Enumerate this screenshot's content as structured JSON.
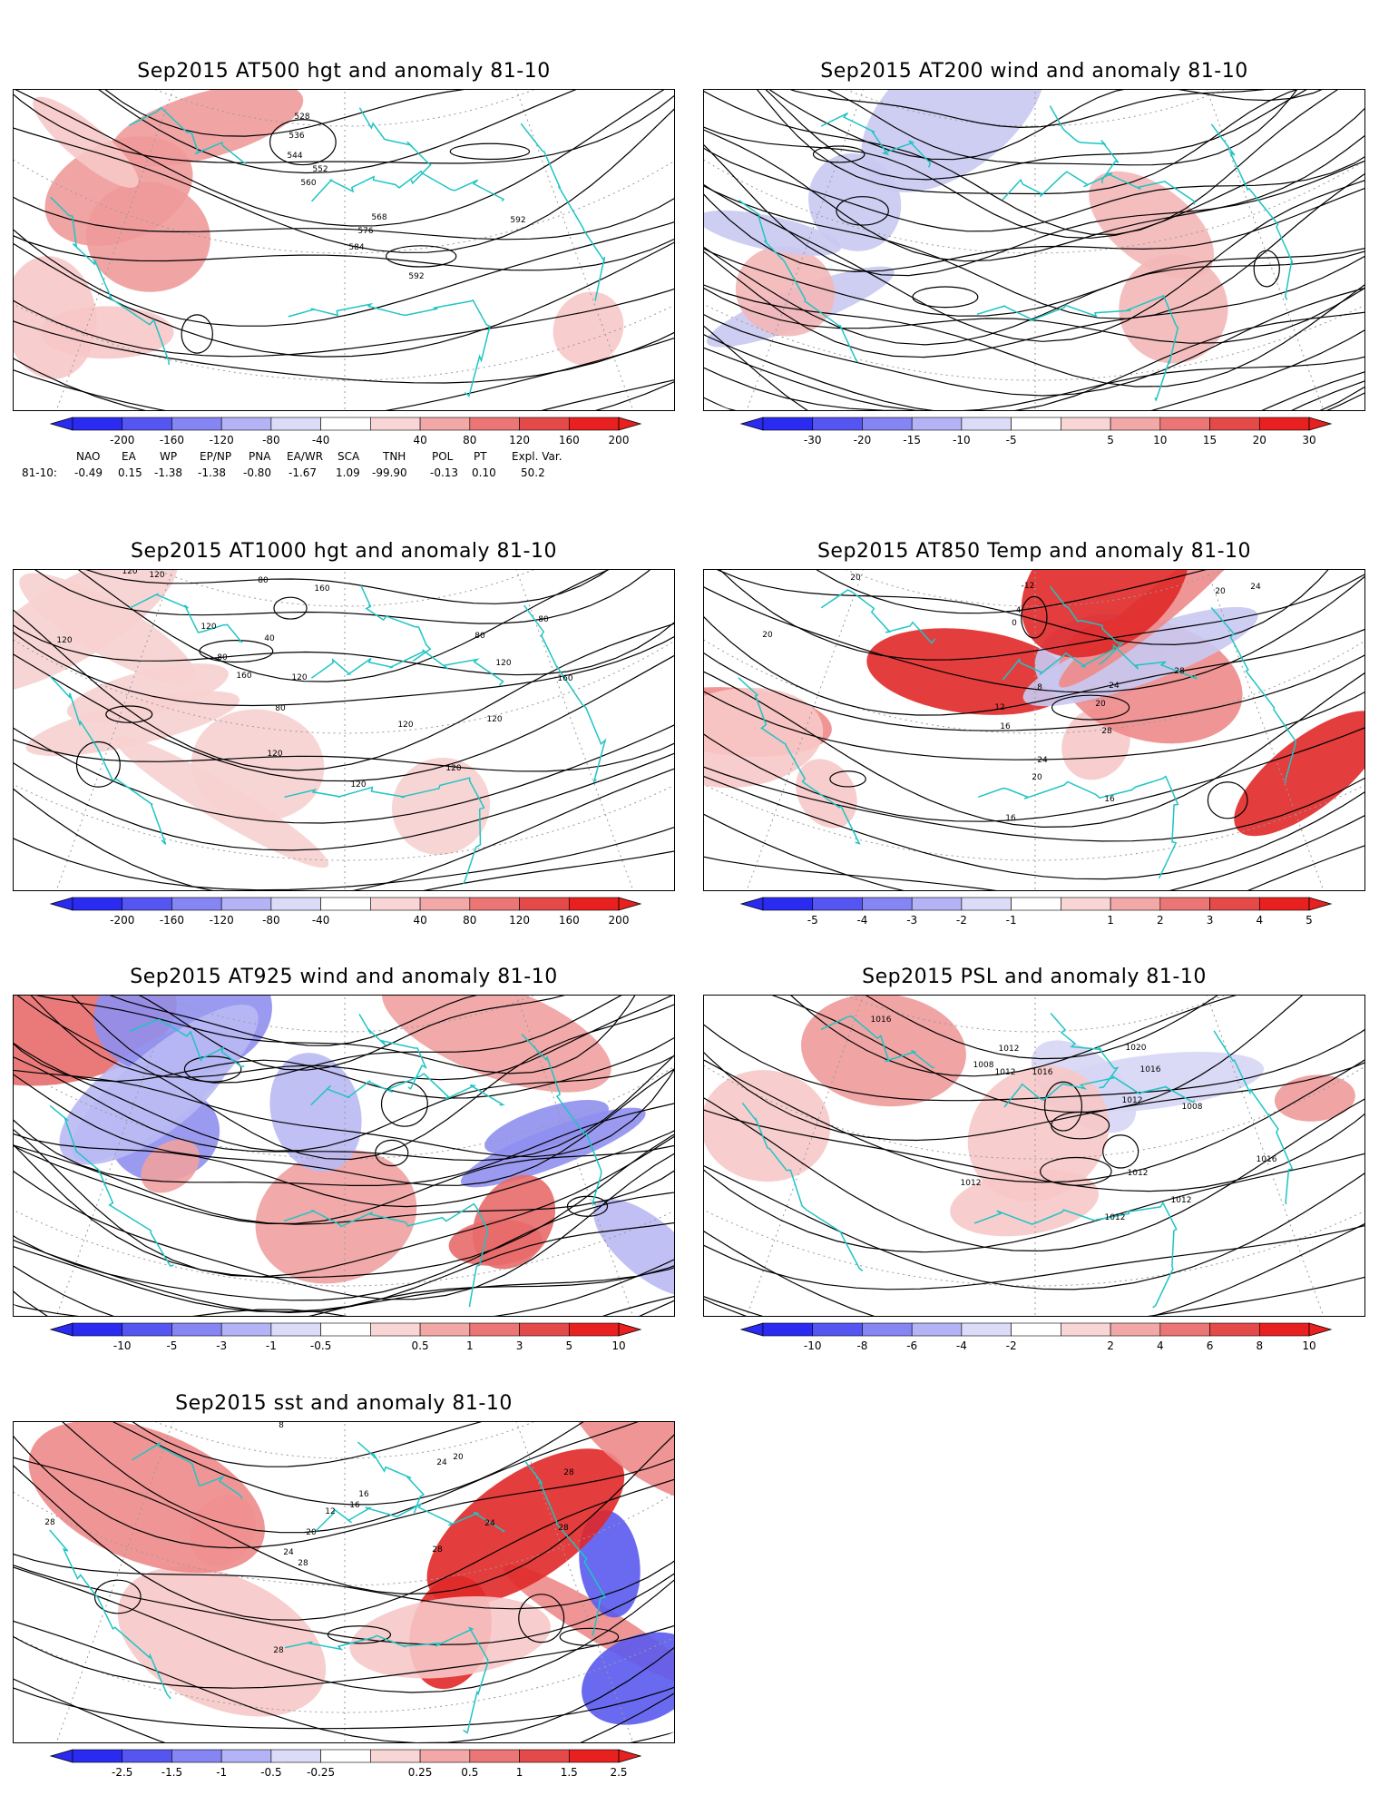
{
  "panels": [
    {
      "id": "at500",
      "title": "Sep2015 AT500 hgt and anomaly 81-10",
      "style": "hgt",
      "contour_labels": [
        "528",
        "536",
        "544",
        "552",
        "560",
        "568",
        "576",
        "584",
        "592",
        "592"
      ],
      "anomaly_colors": [
        "#f7c8c8",
        "#f09a9a"
      ],
      "colorbar": {
        "ticks": [
          "-200",
          "-160",
          "-120",
          "-80",
          "-40",
          "40",
          "80",
          "120",
          "160",
          "200"
        ]
      }
    },
    {
      "id": "at200",
      "title": "Sep2015 AT200 wind and anomaly 81-10",
      "style": "wind",
      "contour_labels": [],
      "anomaly_colors": [
        "#c9c9f2",
        "#f3b7b7"
      ],
      "colorbar": {
        "ticks": [
          "-30",
          "-20",
          "-15",
          "-10",
          "-5",
          "5",
          "10",
          "15",
          "20",
          "30"
        ]
      }
    },
    {
      "id": "at1000",
      "title": "Sep2015 AT1000 hgt and anomaly 81-10",
      "style": "hgt",
      "contour_labels": [
        "120",
        "120",
        "80",
        "160",
        "120",
        "40",
        "80",
        "120",
        "160",
        "80",
        "80",
        "120",
        "120",
        "160",
        "120",
        "80",
        "120",
        "120",
        "120",
        "120"
      ],
      "anomaly_colors": [
        "#f7d0d0"
      ],
      "colorbar": {
        "ticks": [
          "-200",
          "-160",
          "-120",
          "-80",
          "-40",
          "40",
          "80",
          "120",
          "160",
          "200"
        ]
      }
    },
    {
      "id": "at850",
      "title": "Sep2015 AT850 Temp and anomaly 81-10",
      "style": "temp",
      "contour_labels": [
        "20",
        "20",
        "24",
        "20",
        "-12",
        "-4",
        "0",
        "8",
        "12",
        "16",
        "20",
        "24",
        "28",
        "28",
        "24",
        "20",
        "16",
        "16"
      ],
      "anomaly_colors": [
        "#f7c8c8",
        "#ee8a8a",
        "#e02828",
        "#c9c9f2"
      ],
      "colorbar": {
        "ticks": [
          "-5",
          "-4",
          "-3",
          "-2",
          "-1",
          "1",
          "2",
          "3",
          "4",
          "5"
        ]
      }
    },
    {
      "id": "at925",
      "title": "Sep2015 AT925 wind and anomaly 81-10",
      "style": "wind925",
      "contour_labels": [],
      "anomaly_colors": [
        "#8f8ff0",
        "#b9b9f4",
        "#f0a0a0",
        "#e86a6a"
      ],
      "colorbar": {
        "ticks": [
          "-10",
          "-5",
          "-3",
          "-1",
          "-0.5",
          "0.5",
          "1",
          "3",
          "5",
          "10"
        ]
      }
    },
    {
      "id": "psl",
      "title": "Sep2015 PSL and anomaly 81-10",
      "style": "psl",
      "contour_labels": [
        "1016",
        "1012",
        "1008",
        "1012",
        "1016",
        "1020",
        "1016",
        "1012",
        "1008",
        "1016",
        "1012",
        "1012",
        "1012",
        "1012"
      ],
      "anomaly_colors": [
        "#f7c8c8",
        "#ee9a9a",
        "#d6d6f5"
      ],
      "colorbar": {
        "ticks": [
          "-10",
          "-8",
          "-6",
          "-4",
          "-2",
          "2",
          "4",
          "6",
          "8",
          "10"
        ]
      }
    },
    {
      "id": "sst",
      "title": "Sep2015 sst and anomaly 81-10",
      "style": "sst",
      "contour_labels": [
        "28",
        "8",
        "12",
        "16",
        "20",
        "24",
        "28",
        "28",
        "24",
        "28",
        "28",
        "28",
        "16",
        "20",
        "24"
      ],
      "anomaly_colors": [
        "#f7c8c8",
        "#ee8a8a",
        "#e02828",
        "#5a5aee"
      ],
      "colorbar": {
        "ticks": [
          "-2.5",
          "-1.5",
          "-1",
          "-0.5",
          "-0.25",
          "0.25",
          "0.5",
          "1",
          "1.5",
          "2.5"
        ]
      }
    }
  ],
  "colorbar_palette": [
    "#2a2af0",
    "#5555f2",
    "#8585f4",
    "#b3b3f6",
    "#dcdcf8",
    "#ffffff",
    "#f9d6d6",
    "#f3a8a8",
    "#ec7575",
    "#e44a4a",
    "#e82020"
  ],
  "index_table": {
    "headers": [
      "NAO",
      "EA",
      "WP",
      "EP/NP",
      "PNA",
      "EA/WR",
      "SCA",
      "TNH",
      "POL",
      "PT",
      "Expl. Var."
    ],
    "row_label": "81-10:",
    "values": [
      "-0.49",
      "0.15",
      "-1.38",
      "-1.38",
      "-0.80",
      "-1.67",
      "1.09",
      "-99.90",
      "-0.13",
      "0.10",
      "50.2"
    ]
  },
  "colors": {
    "coastline": "#1fc4c4",
    "contour": "#000000",
    "grid": "#9a9a9a"
  }
}
